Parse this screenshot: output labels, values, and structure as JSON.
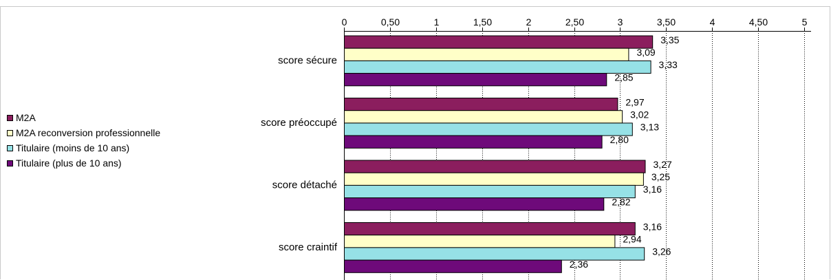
{
  "chart_data": {
    "type": "bar",
    "orientation": "horizontal",
    "categories": [
      "score sécure",
      "score préoccupé",
      "score détaché",
      "score craintif"
    ],
    "series": [
      {
        "name": "M2A",
        "color": "#8b1e5e",
        "values": [
          3.35,
          2.97,
          3.27,
          3.16
        ],
        "labels": [
          "3,35",
          "2,97",
          "3,27",
          "3,16"
        ]
      },
      {
        "name": "M2A reconversion professionnelle",
        "color": "#ffffc8",
        "values": [
          3.09,
          3.02,
          3.25,
          2.94
        ],
        "labels": [
          "3,09",
          "3,02",
          "3,25",
          "2,94"
        ]
      },
      {
        "name": "Titulaire (moins de 10 ans)",
        "color": "#96e1e6",
        "values": [
          3.33,
          3.13,
          3.16,
          3.26
        ],
        "labels": [
          "3,33",
          "3,13",
          "3,16",
          "3,26"
        ]
      },
      {
        "name": "Titulaire (plus de 10 ans)",
        "color": "#6e0a7a",
        "values": [
          2.85,
          2.8,
          2.82,
          2.36
        ],
        "labels": [
          "2,85",
          "2,80",
          "2,82",
          "2,36"
        ]
      }
    ],
    "xlim": [
      0,
      5
    ],
    "ticks": [
      0,
      0.5,
      1,
      1.5,
      2,
      2.5,
      3,
      3.5,
      4,
      4.5,
      5
    ],
    "tick_labels": [
      "0",
      "0,50",
      "1",
      "1,50",
      "2",
      "2,50",
      "3",
      "3,50",
      "4",
      "4,50",
      "5"
    ],
    "grid": true,
    "legend_position": "left"
  }
}
